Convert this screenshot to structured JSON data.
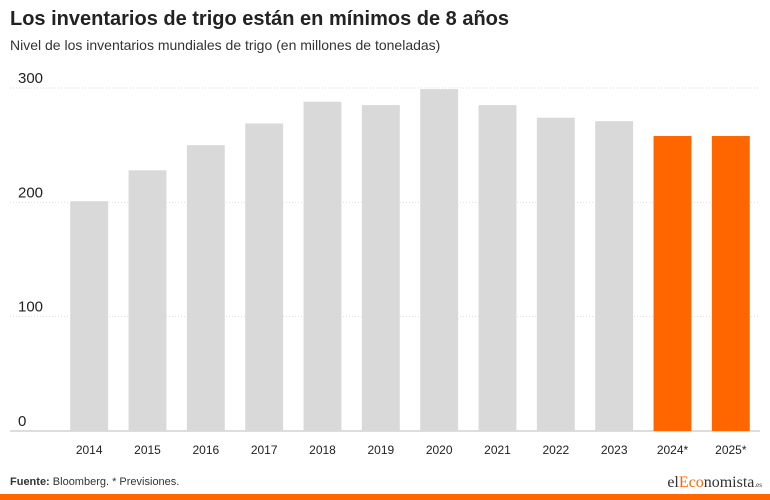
{
  "title": "Los inventarios de trigo están en mínimos de 8 años",
  "subtitle": "Nivel de los inventarios mundiales de trigo (en millones de toneladas)",
  "footer": {
    "source_label": "Fuente:",
    "source_text": " Bloomberg. * Previsiones."
  },
  "brand": {
    "part1": "el",
    "part2": "Eco",
    "part3": "nomista",
    "part4": ".es"
  },
  "colors": {
    "historical": "#d9d9d9",
    "forecast": "#ff6600",
    "brand_accent": "#ff6600"
  },
  "chart_data": {
    "type": "bar",
    "categories": [
      "2014",
      "2015",
      "2016",
      "2017",
      "2018",
      "2019",
      "2020",
      "2021",
      "2022",
      "2023",
      "2024*",
      "2025*"
    ],
    "values": [
      201,
      228,
      250,
      269,
      288,
      285,
      299,
      285,
      274,
      271,
      258,
      258
    ],
    "highlighted": [
      "2024*",
      "2025*"
    ],
    "ylim": [
      0,
      300
    ],
    "yticks": [
      0,
      100,
      200,
      300
    ],
    "xlabel": "",
    "ylabel": "",
    "grid": true,
    "legend": "none"
  }
}
